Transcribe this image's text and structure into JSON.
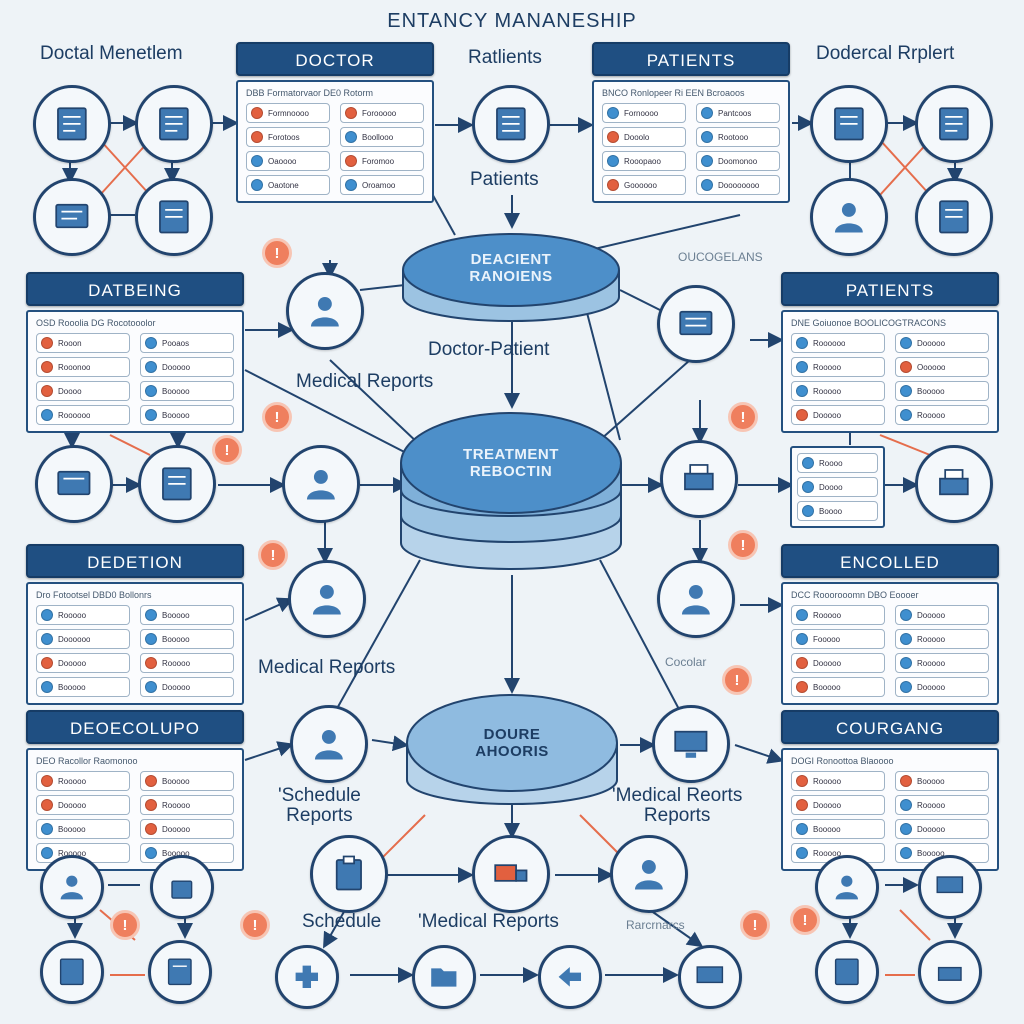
{
  "title": "ENTANCY MANANESHIP",
  "labels": {
    "top_left": "Doctal Menetlem",
    "top_center": "Ratlients",
    "top_right": "Dodercal Rrplert",
    "patients_mid": "Patients",
    "doctor_patient": "Doctor-Patient",
    "medical_reports_1": "Medical Reports",
    "medical_reports_2": "Medical Reports",
    "schedule_reports": "'Schedule\nReports",
    "medical_reports_right": "'Medical Reorts\nReports",
    "schedule_bottom": "Schedule",
    "medical_reports_bottom": "'Medical Reports",
    "small_right_top": "OUCOGELANS",
    "small_bottom_right": "Rarcrnarcs",
    "small_mid_right": "Cocolar"
  },
  "panels": {
    "doctor": {
      "title": "DOCTOR",
      "header": "DBB  Formatorvaor    DE0 Rotorm"
    },
    "patients_top": {
      "title": "PATIENTS",
      "header": "BNCO  Ronlopeer    Ri  EEN Bcroaoos"
    },
    "dateing": {
      "title": "DATBEING",
      "header": "OSD  Rooolia      DG  Rocotooolor"
    },
    "patients_right": {
      "title": "PATIENTS",
      "header": "DNE  Goiuonoe  BOOLICOGTRACONS"
    },
    "dedection": {
      "title": "DEDETION",
      "header": "Dro  Fotootsel   DBD0  Bollonrs"
    },
    "encolled": {
      "title": "ENCOLLED",
      "header": "DCC  Rooorooomn    DBO  Eoooer"
    },
    "deoecolupo": {
      "title": "DEOECOLUPO",
      "header": "DEO  Racollor     Raomonoo"
    },
    "courgang": {
      "title": "COURGANG",
      "header": "DOGI  Ronoottoa     Blaoooo"
    }
  },
  "databases": {
    "top": "DEACIENT\nRANOIENS",
    "center": "TREATMENT\nREBOCTIN",
    "bottom": "DOURE\nAHOORIS"
  },
  "colors": {
    "navy": "#1f4f82",
    "accent_blue": "#3f8fcf",
    "accent_red": "#e2603f",
    "alert": "#ef7f5e",
    "background": "#eef3f7"
  }
}
